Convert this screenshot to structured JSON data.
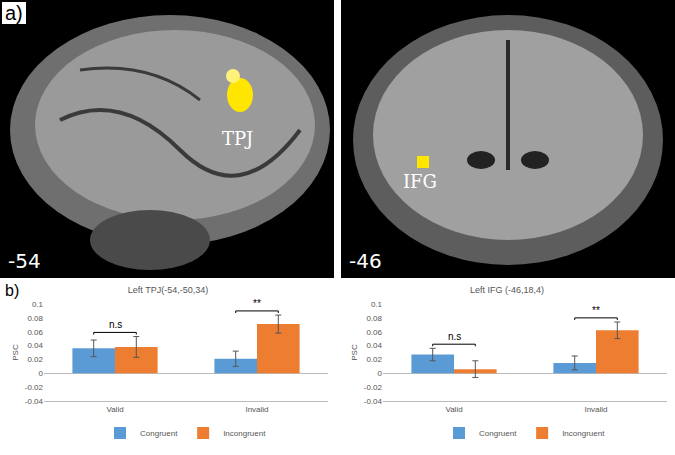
{
  "panel_labels": [
    "a)",
    "b)"
  ],
  "images": [
    {
      "region": "TPJ",
      "slice": "-54"
    },
    {
      "region": "IFG",
      "slice": "-46"
    }
  ],
  "chart_data": [
    {
      "type": "bar",
      "title": "Left TPJ(-54,-50,34)",
      "y_label": "PSC",
      "categories": [
        "Valid",
        "Invalid"
      ],
      "series": [
        {
          "name": "Congruent",
          "color": "#5b9bd5",
          "values": [
            0.036,
            0.021
          ],
          "error": [
            0.012,
            0.011
          ]
        },
        {
          "name": "Incongruent",
          "color": "#ed7d31",
          "values": [
            0.038,
            0.071
          ],
          "error": [
            0.015,
            0.013
          ]
        }
      ],
      "ylim": [
        -0.04,
        0.1
      ],
      "yticks": [
        -0.04,
        -0.02,
        0,
        0.02,
        0.04,
        0.06,
        0.08,
        0.1
      ],
      "grid": false,
      "legend": "bottom",
      "significance": [
        {
          "category": "Valid",
          "label": "n.s"
        },
        {
          "category": "Invalid",
          "label": "**"
        }
      ]
    },
    {
      "type": "bar",
      "title": "Left IFG (-46,18,4)",
      "y_label": "PSC",
      "categories": [
        "Valid",
        "Invalid"
      ],
      "series": [
        {
          "name": "Congruent",
          "color": "#5b9bd5",
          "values": [
            0.027,
            0.015
          ],
          "error": [
            0.009,
            0.01
          ]
        },
        {
          "name": "Incongruent",
          "color": "#ed7d31",
          "values": [
            0.006,
            0.062
          ],
          "error": [
            0.012,
            0.012
          ]
        }
      ],
      "ylim": [
        -0.04,
        0.1
      ],
      "yticks": [
        -0.04,
        -0.02,
        0,
        0.02,
        0.04,
        0.06,
        0.08,
        0.1
      ],
      "grid": false,
      "legend": "bottom",
      "significance": [
        {
          "category": "Valid",
          "label": "n.s"
        },
        {
          "category": "Invalid",
          "label": "**"
        }
      ]
    }
  ]
}
